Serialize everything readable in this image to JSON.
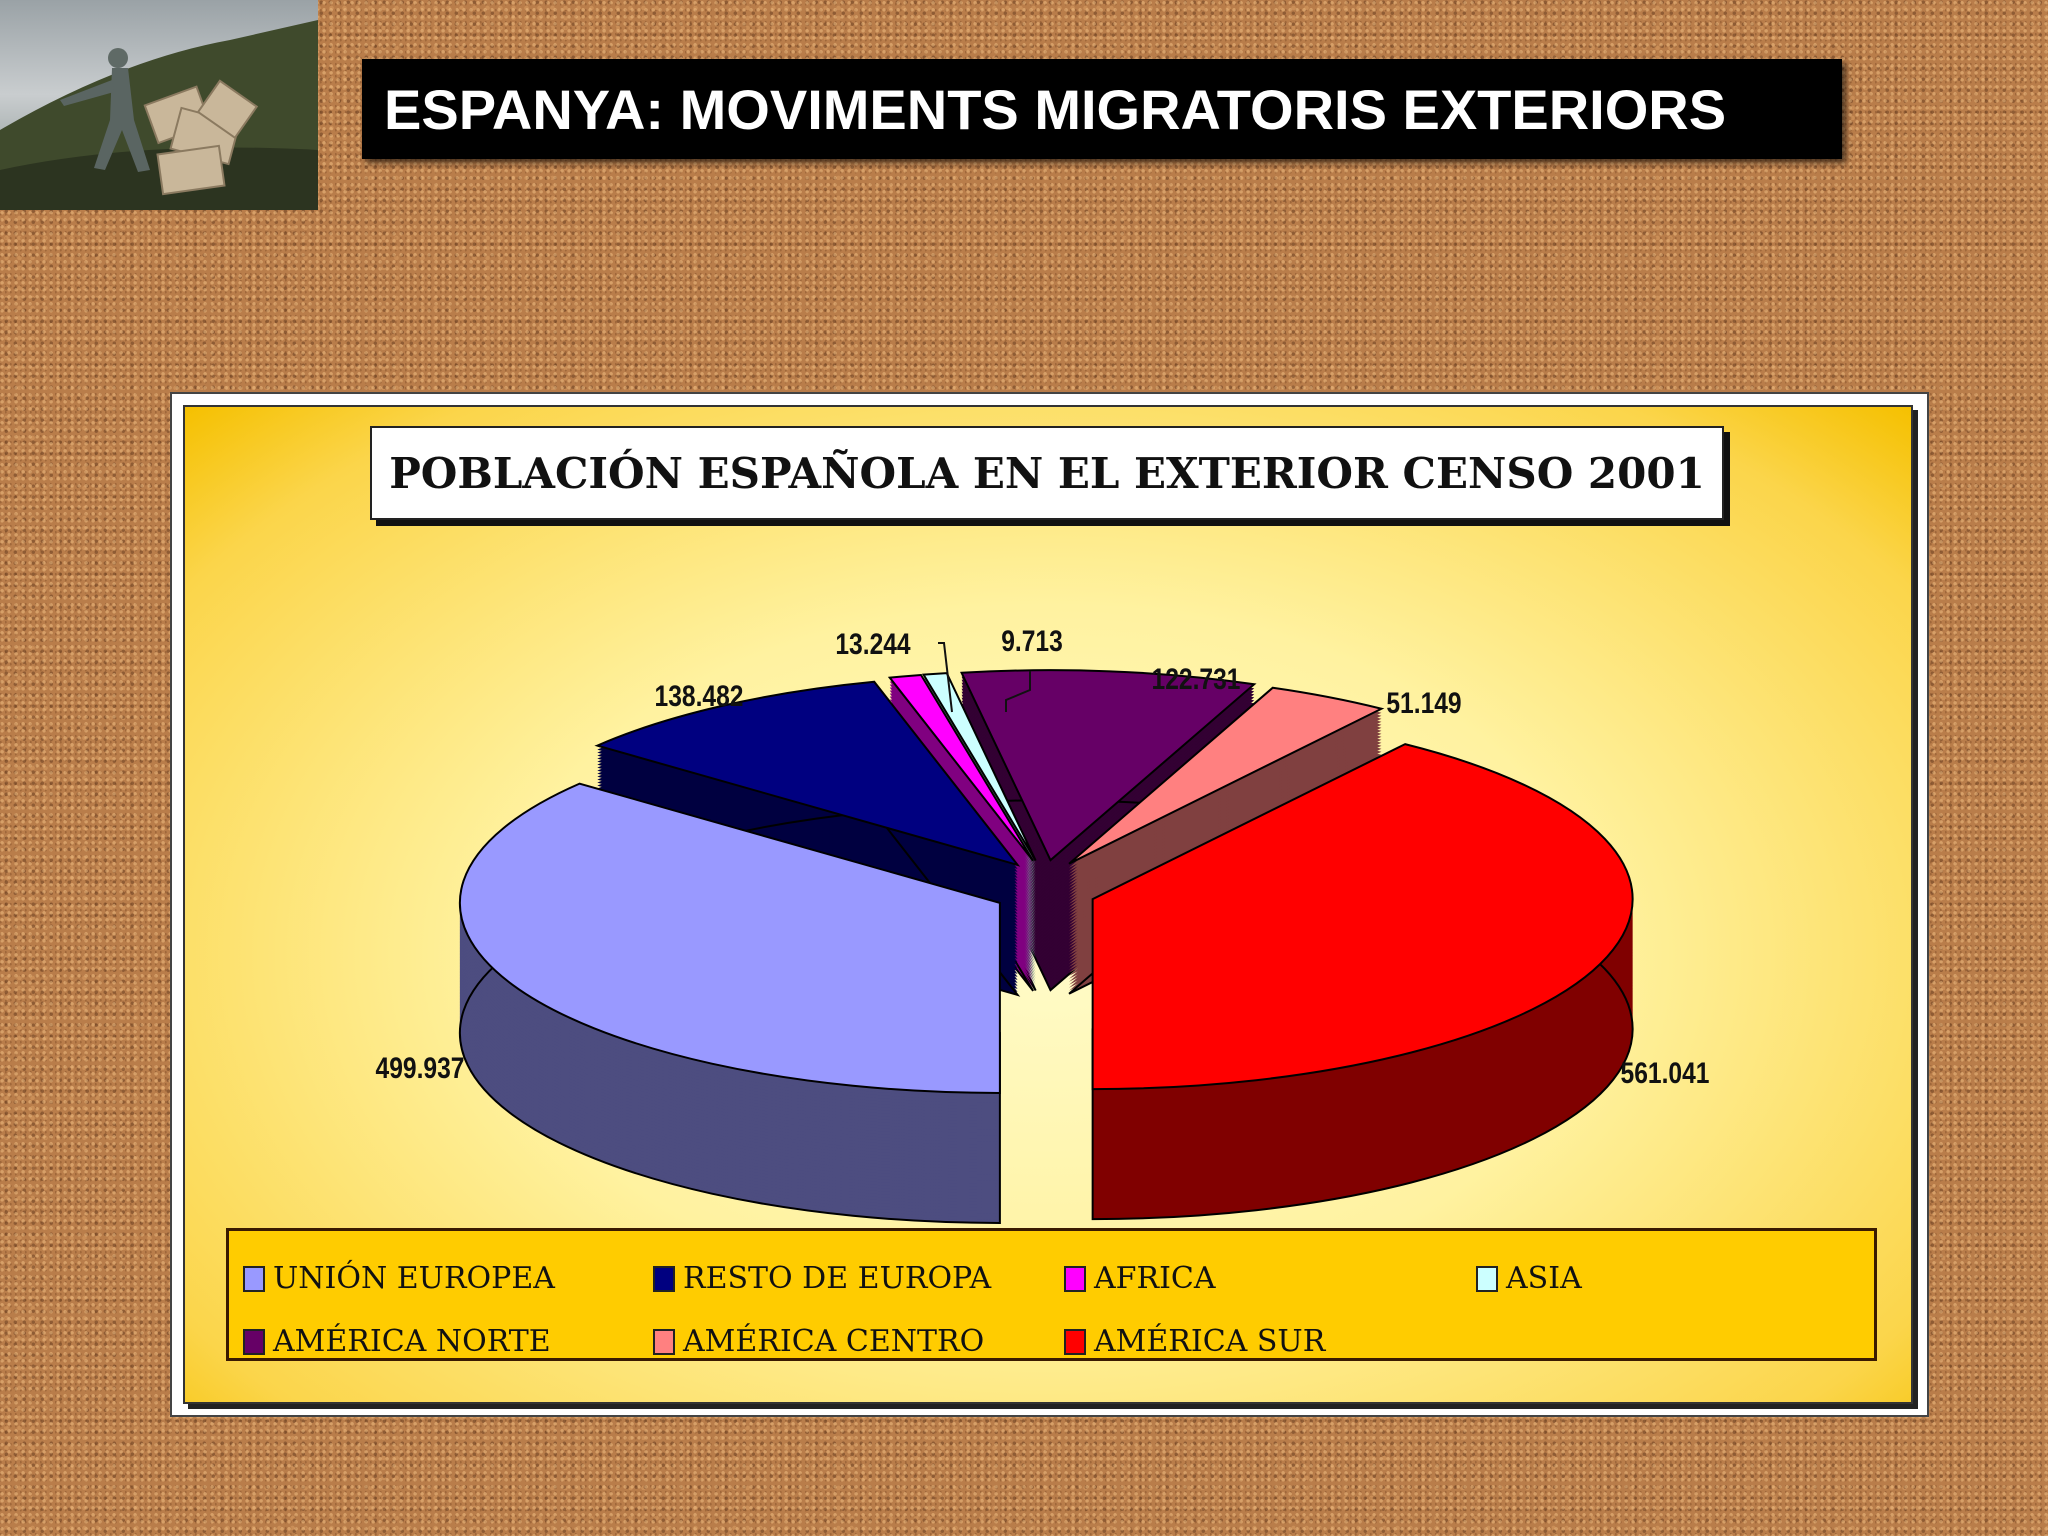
{
  "header": {
    "title": "ESPANYA: MOVIMENTS MIGRATORIS EXTERIORS"
  },
  "chart_data": {
    "type": "pie",
    "variant": "3d-exploded",
    "title": "POBLACIÓN ESPAÑOLA EN EL EXTERIOR CENSO 2001",
    "categories": [
      "UNIÓN EUROPEA",
      "RESTO DE EUROPA",
      "AFRICA",
      "ASIA",
      "AMÉRICA NORTE",
      "AMÉRICA CENTRO",
      "AMÉRICA SUR"
    ],
    "values": [
      499937,
      138482,
      13244,
      9713,
      122731,
      51149,
      561041
    ],
    "data_labels": [
      "499.937",
      "138.482",
      "13.244",
      "9.713",
      "122.731",
      "51.149",
      "561.041"
    ],
    "colors": [
      "#9999ff",
      "#000080",
      "#ff00ff",
      "#ccffff",
      "#660066",
      "#ff8080",
      "#ff0000"
    ],
    "legend_position": "bottom"
  }
}
